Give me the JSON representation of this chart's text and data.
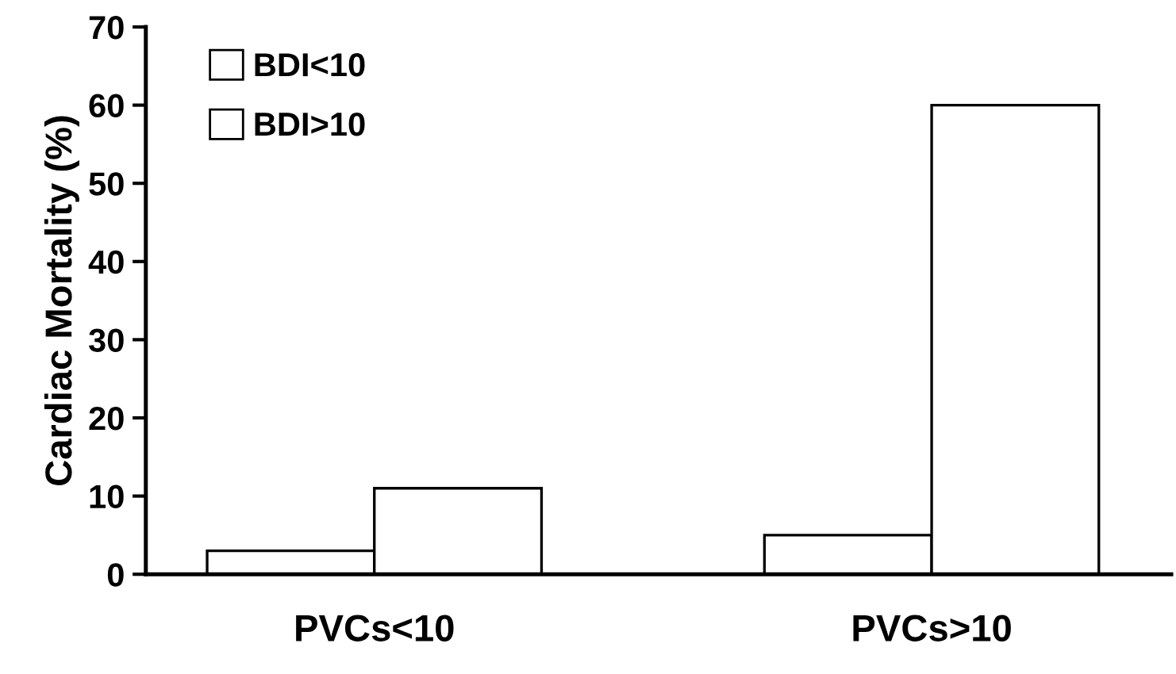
{
  "chart_data": {
    "type": "bar",
    "ylabel": "Cardiac Mortality (%)",
    "categories": [
      "PVCs<10",
      "PVCs>10"
    ],
    "series": [
      {
        "name": "BDI<10",
        "color": "#ffffff",
        "values": [
          3,
          5
        ]
      },
      {
        "name": "BDI>10",
        "color": "#ffffff",
        "values": [
          11,
          60
        ]
      }
    ],
    "ylim": [
      0,
      70
    ],
    "yticks": [
      0,
      10,
      20,
      30,
      40,
      50,
      60,
      70
    ],
    "grid": false,
    "legend": "top left"
  }
}
